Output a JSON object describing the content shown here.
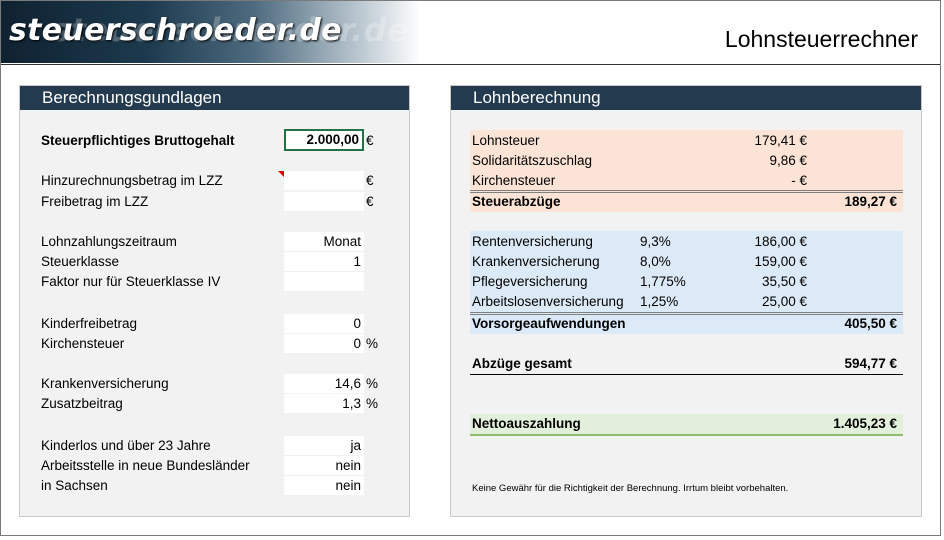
{
  "header": {
    "logo_text": "steuerschroeder.de",
    "app_title": "Lohnsteuerrechner"
  },
  "left_panel": {
    "title": "Berechnungsgundlagen",
    "fields": [
      {
        "label": "Steuerpflichtiges Bruttogehalt",
        "value": "2.000,00",
        "unit": "€"
      },
      {
        "label": "Hinzurechnungsbetrag im LZZ",
        "value": "",
        "unit": "€"
      },
      {
        "label": "Freibetrag im LZZ",
        "value": "",
        "unit": "€"
      },
      {
        "label": "Lohnzahlungszeitraum",
        "value": "Monat",
        "unit": ""
      },
      {
        "label": "Steuerklasse",
        "value": "1",
        "unit": ""
      },
      {
        "label": "Faktor nur für Steuerklasse IV",
        "value": "",
        "unit": ""
      },
      {
        "label": "Kinderfreibetrag",
        "value": "0",
        "unit": ""
      },
      {
        "label": "Kirchensteuer",
        "value": "0",
        "unit": "%"
      },
      {
        "label": "Krankenversicherung",
        "value": "14,6",
        "unit": "%"
      },
      {
        "label": "Zusatzbeitrag",
        "value": "1,3",
        "unit": "%"
      },
      {
        "label": "Kinderlos und über 23 Jahre",
        "value": "ja",
        "unit": ""
      },
      {
        "label": "Arbeitsstelle in neue Bundesländer",
        "value": "nein",
        "unit": ""
      },
      {
        "label": "in Sachsen",
        "value": "nein",
        "unit": ""
      }
    ]
  },
  "right_panel": {
    "title": "Lohnberechnung",
    "tax_rows": [
      {
        "name": "Lohnsteuer",
        "value": "179,41 €"
      },
      {
        "name": "Solidaritätszuschlag",
        "value": "9,86 €"
      },
      {
        "name": "Kirchensteuer",
        "value": "-    €"
      }
    ],
    "tax_total": {
      "name": "Steuerabzüge",
      "value": "189,27 €"
    },
    "insurance_rows": [
      {
        "name": "Rentenversicherung",
        "pct": "9,3%",
        "value": "186,00 €"
      },
      {
        "name": "Krankenversicherung",
        "pct": "8,0%",
        "value": "159,00 €"
      },
      {
        "name": "Pflegeversicherung",
        "pct": "1,775%",
        "value": "35,50 €"
      },
      {
        "name": "Arbeitslosenversicherung",
        "pct": "1,25%",
        "value": "25,00 €"
      }
    ],
    "insurance_total": {
      "name": "Vorsorgeaufwendungen",
      "value": "405,50 €"
    },
    "deductions_total": {
      "name": "Abzüge gesamt",
      "value": "594,77 €"
    },
    "net": {
      "name": "Nettoauszahlung",
      "value": "1.405,23 €"
    },
    "disclaimer": "Keine Gewähr für die Richtigkeit der Berechnung. Irrtum bleibt vorbehalten."
  },
  "colors": {
    "panel_header": "#233a4f",
    "tax_band": "#fbe4d6",
    "insurance_band": "#dce9f6",
    "net_band": "#e2efda",
    "active_cell_border": "#217346"
  }
}
